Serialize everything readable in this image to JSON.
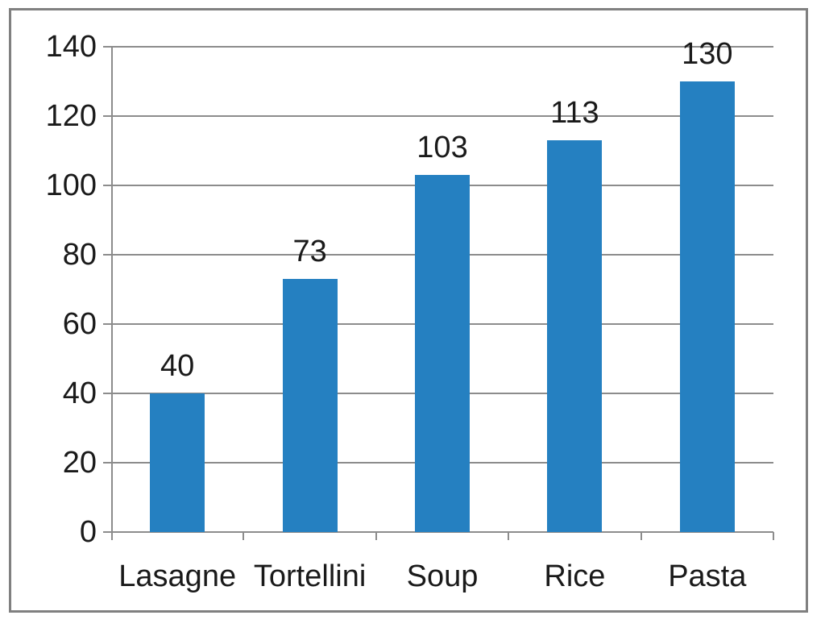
{
  "chart_data": {
    "type": "bar",
    "categories": [
      "Lasagne",
      "Tortellini",
      "Soup",
      "Rice",
      "Pasta"
    ],
    "values": [
      40,
      73,
      103,
      113,
      130
    ],
    "data_labels": [
      "40",
      "73",
      "103",
      "113",
      "130"
    ],
    "title": "",
    "xlabel": "",
    "ylabel": "",
    "ylim": [
      0,
      140
    ],
    "yticks": [
      0,
      20,
      40,
      60,
      80,
      100,
      120,
      140
    ],
    "ytick_labels": [
      "0",
      "20",
      "40",
      "60",
      "80",
      "100",
      "120",
      "140"
    ],
    "grid": true,
    "legend": false,
    "colors": {
      "bar_fill": "#2580c1",
      "gridline": "#8c8c8c",
      "axis": "#8c8c8c",
      "frame_border": "#808080",
      "text": "#1a1a1a",
      "background": "#ffffff"
    }
  }
}
